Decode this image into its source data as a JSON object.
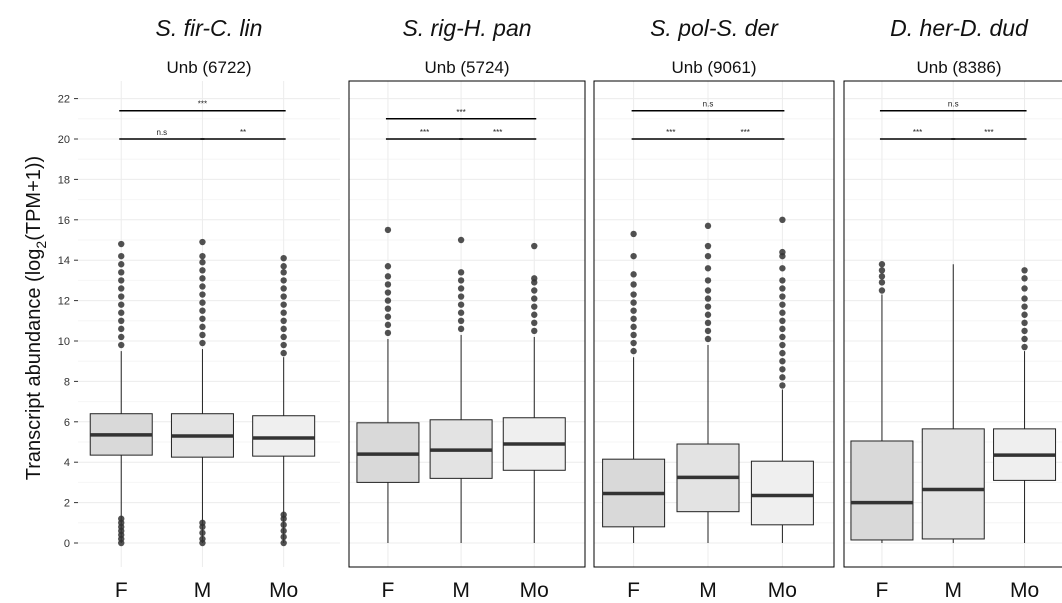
{
  "chart_data": {
    "type": "boxplot",
    "ylabel": "Transcript abundance (log2(TPM+1))",
    "ylabel_parts": {
      "prefix": "Transcript abundance (log",
      "subscript": "2",
      "suffix": "(TPM+1))"
    },
    "ylim": [
      0,
      22
    ],
    "yticks": [
      0,
      2,
      4,
      6,
      8,
      10,
      12,
      14,
      16,
      18,
      20,
      22
    ],
    "ytick_labels": [
      "0",
      "2",
      "4",
      "6",
      "8",
      "10",
      "12",
      "14",
      "16",
      "18",
      "20",
      "22"
    ],
    "categories": [
      "F",
      "M",
      "Mo"
    ],
    "box_colors": [
      "#d9d9d9",
      "#e3e3e3",
      "#efefef"
    ],
    "grid": true,
    "panels": [
      {
        "title": "S. fir-C. lin",
        "subtitle": "Unb (6722)",
        "frame": false,
        "boxes": [
          {
            "category": "F",
            "min": 0.0,
            "q1": 4.35,
            "median": 5.35,
            "q3": 6.4,
            "max": 9.5,
            "outliers_high": [
              9.8,
              10.2,
              10.6,
              11.0,
              11.4,
              11.8,
              12.2,
              12.6,
              13.0,
              13.4,
              13.8,
              14.2,
              14.8
            ],
            "outliers_low": [
              0.0,
              0.2,
              0.4,
              0.6,
              0.8,
              1.0,
              1.2
            ]
          },
          {
            "category": "M",
            "min": 0.0,
            "q1": 4.25,
            "median": 5.3,
            "q3": 6.4,
            "max": 9.6,
            "outliers_high": [
              9.9,
              10.3,
              10.7,
              11.1,
              11.5,
              11.9,
              12.3,
              12.7,
              13.1,
              13.5,
              13.9,
              14.2,
              14.9
            ],
            "outliers_low": [
              0.0,
              0.2,
              0.5,
              0.8,
              1.0
            ]
          },
          {
            "category": "Mo",
            "min": 0.0,
            "q1": 4.3,
            "median": 5.2,
            "q3": 6.3,
            "max": 9.2,
            "outliers_high": [
              9.4,
              9.8,
              10.2,
              10.6,
              11.0,
              11.4,
              11.8,
              12.2,
              12.6,
              13.0,
              13.4,
              13.7,
              14.1
            ],
            "outliers_low": [
              0.0,
              0.3,
              0.6,
              0.9,
              1.2,
              1.4
            ]
          }
        ],
        "comparisons": [
          {
            "from": 0,
            "to": 2,
            "y": 21.4,
            "label": "***"
          },
          {
            "from": 0,
            "to": 1,
            "y": 20.0,
            "label": "n.s"
          },
          {
            "from": 1,
            "to": 2,
            "y": 20.0,
            "label": "**"
          }
        ]
      },
      {
        "title": "S. rig-H. pan",
        "subtitle": "Unb (5724)",
        "frame": true,
        "boxes": [
          {
            "category": "F",
            "min": 0.0,
            "q1": 3.0,
            "median": 4.4,
            "q3": 5.95,
            "max": 10.1,
            "outliers_high": [
              10.4,
              10.8,
              11.2,
              11.6,
              12.0,
              12.4,
              12.8,
              13.2,
              13.7,
              15.5
            ],
            "outliers_low": []
          },
          {
            "category": "M",
            "min": 0.0,
            "q1": 3.2,
            "median": 4.6,
            "q3": 6.1,
            "max": 10.3,
            "outliers_high": [
              10.6,
              11.0,
              11.4,
              11.8,
              12.2,
              12.6,
              13.0,
              13.4,
              15.0
            ],
            "outliers_low": []
          },
          {
            "category": "Mo",
            "min": 0.0,
            "q1": 3.6,
            "median": 4.9,
            "q3": 6.2,
            "max": 10.2,
            "outliers_high": [
              10.5,
              10.9,
              11.3,
              11.7,
              12.1,
              12.5,
              12.9,
              13.1,
              14.7
            ],
            "outliers_low": []
          }
        ],
        "comparisons": [
          {
            "from": 0,
            "to": 2,
            "y": 21.0,
            "label": "***"
          },
          {
            "from": 0,
            "to": 1,
            "y": 20.0,
            "label": "***"
          },
          {
            "from": 1,
            "to": 2,
            "y": 20.0,
            "label": "***"
          }
        ]
      },
      {
        "title": "S. pol-S. der",
        "subtitle": "Unb (9061)",
        "frame": true,
        "boxes": [
          {
            "category": "F",
            "min": 0.0,
            "q1": 0.8,
            "median": 2.45,
            "q3": 4.15,
            "max": 9.2,
            "outliers_high": [
              9.5,
              9.9,
              10.3,
              10.7,
              11.1,
              11.5,
              11.9,
              12.3,
              12.8,
              13.3,
              14.2,
              15.3
            ],
            "outliers_low": []
          },
          {
            "category": "M",
            "min": 0.0,
            "q1": 1.55,
            "median": 3.25,
            "q3": 4.9,
            "max": 9.8,
            "outliers_high": [
              10.1,
              10.5,
              10.9,
              11.3,
              11.7,
              12.1,
              12.5,
              13.0,
              13.6,
              14.2,
              14.7,
              15.7
            ],
            "outliers_low": []
          },
          {
            "category": "Mo",
            "min": 0.0,
            "q1": 0.9,
            "median": 2.35,
            "q3": 4.05,
            "max": 7.6,
            "outliers_high": [
              7.8,
              8.2,
              8.6,
              9.0,
              9.4,
              9.8,
              10.2,
              10.6,
              11.0,
              11.4,
              11.8,
              12.2,
              12.6,
              13.0,
              13.6,
              14.2,
              14.4,
              16.0
            ],
            "outliers_low": []
          }
        ],
        "comparisons": [
          {
            "from": 0,
            "to": 2,
            "y": 21.4,
            "label": "n.s"
          },
          {
            "from": 0,
            "to": 1,
            "y": 20.0,
            "label": "***"
          },
          {
            "from": 1,
            "to": 2,
            "y": 20.0,
            "label": "***"
          }
        ]
      },
      {
        "title": "D. her-D. dud",
        "subtitle": "Unb (8386)",
        "frame": true,
        "boxes": [
          {
            "category": "F",
            "min": 0.0,
            "q1": 0.15,
            "median": 2.0,
            "q3": 5.05,
            "max": 12.3,
            "outliers_high": [
              12.5,
              12.9,
              13.2,
              13.5,
              13.8
            ],
            "outliers_low": []
          },
          {
            "category": "M",
            "min": 0.0,
            "q1": 0.2,
            "median": 2.65,
            "q3": 5.65,
            "max": 13.8,
            "outliers_high": [],
            "outliers_low": []
          },
          {
            "category": "Mo",
            "min": 0.0,
            "q1": 3.1,
            "median": 4.35,
            "q3": 5.65,
            "max": 9.5,
            "outliers_high": [
              9.7,
              10.1,
              10.5,
              10.9,
              11.3,
              11.7,
              12.1,
              12.6,
              13.1,
              13.5
            ],
            "outliers_low": []
          }
        ],
        "comparisons": [
          {
            "from": 0,
            "to": 2,
            "y": 21.4,
            "label": "n.s"
          },
          {
            "from": 0,
            "to": 1,
            "y": 20.0,
            "label": "***"
          },
          {
            "from": 1,
            "to": 2,
            "y": 20.0,
            "label": "***"
          }
        ]
      }
    ]
  }
}
